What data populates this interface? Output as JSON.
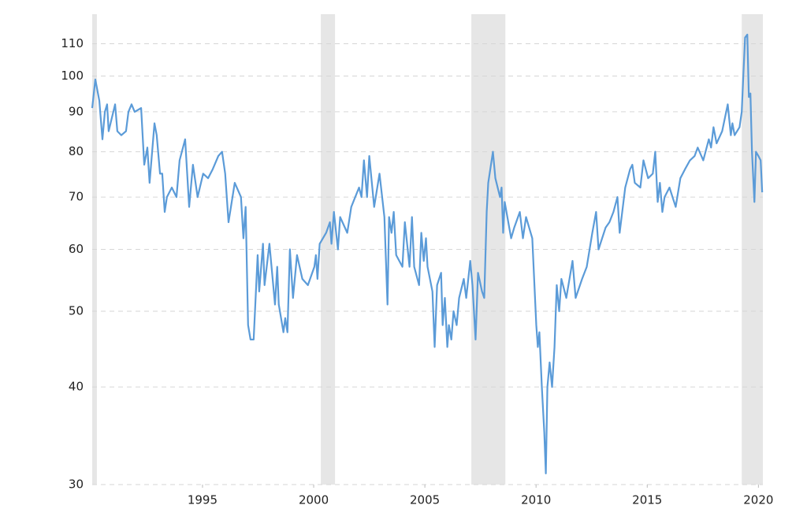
{
  "chart_data": {
    "type": "line",
    "log_scale": true,
    "grid": true,
    "xlim": [
      1990.04,
      2020.2
    ],
    "ylim": [
      30,
      120
    ],
    "xticks": [
      1995,
      2000,
      2005,
      2010,
      2015,
      2020
    ],
    "yticks": [
      30,
      40,
      50,
      60,
      70,
      80,
      90,
      100,
      110
    ],
    "shaded_ranges": [
      [
        1990.04,
        1990.25
      ],
      [
        2000.32,
        2000.96
      ],
      [
        2007.09,
        2008.62
      ],
      [
        2019.25,
        2020.2
      ]
    ],
    "shade_color": "#e6e6e6",
    "x": [
      1990.04,
      1990.18,
      1990.36,
      1990.5,
      1990.61,
      1990.71,
      1990.78,
      1991.07,
      1991.17,
      1991.35,
      1991.56,
      1991.67,
      1991.81,
      1991.95,
      1992.24,
      1992.38,
      1992.52,
      1992.62,
      1992.84,
      1992.94,
      1993.09,
      1993.19,
      1993.3,
      1993.4,
      1993.62,
      1993.83,
      1993.97,
      1994.22,
      1994.4,
      1994.57,
      1994.78,
      1995.03,
      1995.25,
      1995.46,
      1995.71,
      1995.88,
      1996.02,
      1996.17,
      1996.45,
      1996.73,
      1996.84,
      1996.94,
      1997.05,
      1997.16,
      1997.3,
      1997.48,
      1997.55,
      1997.72,
      1997.79,
      1998.01,
      1998.26,
      1998.36,
      1998.43,
      1998.64,
      1998.72,
      1998.82,
      1998.93,
      1999.07,
      1999.25,
      1999.49,
      1999.74,
      2000.03,
      2000.1,
      2000.17,
      2000.27,
      2000.56,
      2000.73,
      2000.8,
      2000.91,
      2001.09,
      2001.19,
      2001.51,
      2001.69,
      2002.04,
      2002.15,
      2002.26,
      2002.4,
      2002.5,
      2002.72,
      2002.96,
      2003.18,
      2003.32,
      2003.39,
      2003.5,
      2003.6,
      2003.71,
      2003.99,
      2004.1,
      2004.31,
      2004.42,
      2004.52,
      2004.74,
      2004.84,
      2004.95,
      2005.05,
      2005.12,
      2005.34,
      2005.44,
      2005.55,
      2005.73,
      2005.8,
      2005.9,
      2006.01,
      2006.08,
      2006.19,
      2006.29,
      2006.43,
      2006.54,
      2006.75,
      2006.86,
      2007.04,
      2007.14,
      2007.28,
      2007.39,
      2007.57,
      2007.67,
      2007.78,
      2007.85,
      2008.06,
      2008.17,
      2008.38,
      2008.45,
      2008.52,
      2008.59,
      2008.88,
      2009.02,
      2009.27,
      2009.41,
      2009.55,
      2009.83,
      2010.01,
      2010.08,
      2010.15,
      2010.26,
      2010.37,
      2010.44,
      2010.51,
      2010.61,
      2010.72,
      2010.83,
      2010.93,
      2011.04,
      2011.14,
      2011.36,
      2011.64,
      2011.78,
      2012.07,
      2012.28,
      2012.53,
      2012.7,
      2012.81,
      2013.13,
      2013.3,
      2013.48,
      2013.66,
      2013.76,
      2014.01,
      2014.23,
      2014.33,
      2014.44,
      2014.69,
      2014.83,
      2015.04,
      2015.25,
      2015.36,
      2015.47,
      2015.57,
      2015.68,
      2015.78,
      2016.0,
      2016.28,
      2016.49,
      2016.7,
      2016.92,
      2017.13,
      2017.27,
      2017.52,
      2017.77,
      2017.87,
      2017.98,
      2018.12,
      2018.37,
      2018.62,
      2018.76,
      2018.83,
      2018.93,
      2019.15,
      2019.25,
      2019.32,
      2019.4,
      2019.5,
      2019.57,
      2019.64,
      2019.71,
      2019.82,
      2019.89,
      2020.0,
      2020.1,
      2020.17
    ],
    "series": [
      {
        "color": "#5b9bd8",
        "values": [
          91,
          99,
          93,
          83,
          90,
          92,
          85,
          92,
          85,
          84,
          85,
          90,
          92,
          90,
          91,
          77,
          81,
          73,
          87,
          84,
          75,
          75,
          67,
          70,
          72,
          70,
          78,
          83,
          68,
          77,
          70,
          75,
          74,
          76,
          79,
          80,
          75,
          65,
          73,
          70,
          62,
          68,
          48,
          46,
          46,
          59,
          53,
          61,
          54,
          61,
          51,
          57,
          51,
          47,
          49,
          47,
          60,
          52,
          59,
          55,
          54,
          57,
          59,
          55,
          61,
          63,
          65,
          61,
          67,
          60,
          66,
          63,
          68,
          72,
          70,
          78,
          70,
          79,
          68,
          75,
          66,
          51,
          66,
          63,
          67,
          59,
          57,
          65,
          57,
          66,
          57,
          54,
          63,
          58,
          62,
          57,
          53,
          45,
          54,
          56,
          48,
          52,
          45,
          48,
          46,
          50,
          48,
          52,
          55,
          52,
          58,
          54,
          46,
          56,
          53,
          52,
          67,
          73,
          80,
          74,
          70,
          72,
          63,
          69,
          62,
          64,
          67,
          62,
          66,
          62,
          48,
          45,
          47,
          40,
          35,
          31,
          40,
          43,
          40,
          45,
          54,
          50,
          55,
          52,
          58,
          52,
          55,
          57,
          63,
          67,
          60,
          64,
          65,
          67,
          70,
          63,
          72,
          76,
          77,
          73,
          72,
          78,
          74,
          75,
          80,
          69,
          73,
          67,
          70,
          72,
          68,
          74,
          76,
          78,
          79,
          81,
          78,
          83,
          81,
          86,
          82,
          85,
          92,
          84,
          87,
          84,
          86,
          90,
          100,
          112,
          113,
          94,
          95,
          80,
          69,
          80,
          79,
          78,
          71
        ]
      }
    ]
  }
}
